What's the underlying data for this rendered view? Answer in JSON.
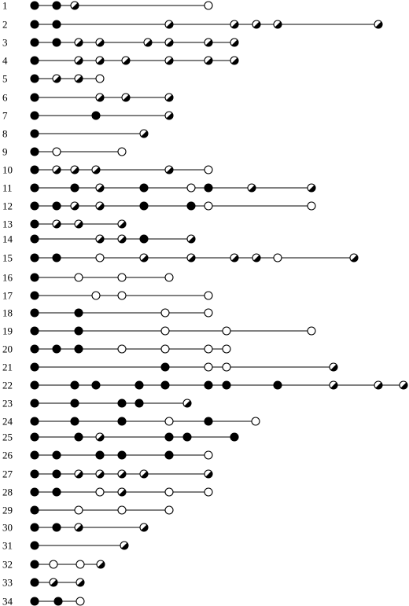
{
  "legend_note": "",
  "rows": [
    {
      "label": "1",
      "events": [
        [
          "f",
          44
        ],
        [
          "f",
          72
        ],
        [
          "h",
          95
        ],
        [
          "o",
          265
        ]
      ]
    },
    {
      "label": "2",
      "events": [
        [
          "f",
          44
        ],
        [
          "f",
          72
        ],
        [
          "h",
          215
        ],
        [
          "h",
          298
        ],
        [
          "h",
          326
        ],
        [
          "h",
          353
        ],
        [
          "h",
          481
        ]
      ]
    },
    {
      "label": "3",
      "events": [
        [
          "f",
          44
        ],
        [
          "f",
          72
        ],
        [
          "h",
          100
        ],
        [
          "h",
          127
        ],
        [
          "h",
          188
        ],
        [
          "h",
          215
        ],
        [
          "h",
          265
        ],
        [
          "h",
          298
        ]
      ]
    },
    {
      "label": "4",
      "events": [
        [
          "f",
          44
        ],
        [
          "h",
          100
        ],
        [
          "h",
          127
        ],
        [
          "h",
          160
        ],
        [
          "h",
          215
        ],
        [
          "h",
          265
        ],
        [
          "h",
          298
        ]
      ]
    },
    {
      "label": "5",
      "events": [
        [
          "f",
          44
        ],
        [
          "h",
          72
        ],
        [
          "h",
          100
        ],
        [
          "o",
          127
        ]
      ]
    },
    {
      "label": "6",
      "events": [
        [
          "f",
          44
        ],
        [
          "h",
          127
        ],
        [
          "h",
          160
        ],
        [
          "h",
          215
        ]
      ]
    },
    {
      "label": "7",
      "events": [
        [
          "f",
          44
        ],
        [
          "f",
          122
        ],
        [
          "h",
          215
        ]
      ]
    },
    {
      "label": "8",
      "events": [
        [
          "f",
          44
        ],
        [
          "h",
          183
        ]
      ]
    },
    {
      "label": "9",
      "events": [
        [
          "f",
          44
        ],
        [
          "o",
          72
        ],
        [
          "o",
          155
        ]
      ]
    },
    {
      "label": "10",
      "events": [
        [
          "f",
          44
        ],
        [
          "h",
          72
        ],
        [
          "h",
          95
        ],
        [
          "h",
          122
        ],
        [
          "h",
          215
        ],
        [
          "o",
          265
        ]
      ]
    },
    {
      "label": "11",
      "events": [
        [
          "f",
          44
        ],
        [
          "f",
          95
        ],
        [
          "h",
          127
        ],
        [
          "f",
          183
        ],
        [
          "o",
          243
        ],
        [
          "f",
          265
        ],
        [
          "h",
          320
        ],
        [
          "h",
          396
        ]
      ]
    },
    {
      "label": "12",
      "events": [
        [
          "f",
          44
        ],
        [
          "f",
          72
        ],
        [
          "h",
          95
        ],
        [
          "h",
          127
        ],
        [
          "f",
          183
        ],
        [
          "f",
          243
        ],
        [
          "o",
          265
        ],
        [
          "o",
          396
        ]
      ]
    },
    {
      "label": "13",
      "events": [
        [
          "f",
          44
        ],
        [
          "h",
          72
        ],
        [
          "h",
          100
        ],
        [
          "h",
          155
        ]
      ]
    },
    {
      "label": "14",
      "events": [
        [
          "f",
          44
        ],
        [
          "h",
          127
        ],
        [
          "h",
          155
        ],
        [
          "f",
          183
        ],
        [
          "h",
          243
        ]
      ]
    },
    {
      "label": "15",
      "events": [
        [
          "f",
          44
        ],
        [
          "f",
          72
        ],
        [
          "o",
          127
        ],
        [
          "h",
          183
        ],
        [
          "h",
          243
        ],
        [
          "h",
          298
        ],
        [
          "h",
          326
        ],
        [
          "o",
          353
        ],
        [
          "h",
          450
        ]
      ]
    },
    {
      "label": "16",
      "events": [
        [
          "f",
          44
        ],
        [
          "o",
          100
        ],
        [
          "o",
          155
        ],
        [
          "o",
          215
        ]
      ]
    },
    {
      "label": "17",
      "events": [
        [
          "f",
          44
        ],
        [
          "o",
          122
        ],
        [
          "o",
          155
        ],
        [
          "o",
          265
        ]
      ]
    },
    {
      "label": "18",
      "events": [
        [
          "f",
          44
        ],
        [
          "f",
          100
        ],
        [
          "o",
          210
        ],
        [
          "o",
          265
        ]
      ]
    },
    {
      "label": "19",
      "events": [
        [
          "f",
          44
        ],
        [
          "f",
          100
        ],
        [
          "o",
          210
        ],
        [
          "o",
          288
        ],
        [
          "o",
          396
        ]
      ]
    },
    {
      "label": "20",
      "events": [
        [
          "f",
          44
        ],
        [
          "f",
          72
        ],
        [
          "f",
          100
        ],
        [
          "o",
          155
        ],
        [
          "o",
          210
        ],
        [
          "o",
          265
        ],
        [
          "o",
          288
        ]
      ]
    },
    {
      "label": "21",
      "events": [
        [
          "f",
          44
        ],
        [
          "f",
          210
        ],
        [
          "o",
          265
        ],
        [
          "o",
          288
        ],
        [
          "h",
          424
        ]
      ]
    },
    {
      "label": "22",
      "events": [
        [
          "f",
          44
        ],
        [
          "f",
          95
        ],
        [
          "f",
          122
        ],
        [
          "f",
          177
        ],
        [
          "f",
          210
        ],
        [
          "f",
          265
        ],
        [
          "f",
          288
        ],
        [
          "f",
          353
        ],
        [
          "h",
          424
        ],
        [
          "h",
          481
        ],
        [
          "h",
          513
        ]
      ]
    },
    {
      "label": "23",
      "events": [
        [
          "f",
          44
        ],
        [
          "f",
          95
        ],
        [
          "f",
          155
        ],
        [
          "f",
          177
        ],
        [
          "h",
          238
        ]
      ]
    },
    {
      "label": "24",
      "events": [
        [
          "f",
          44
        ],
        [
          "f",
          95
        ],
        [
          "f",
          155
        ],
        [
          "o",
          215
        ],
        [
          "f",
          265
        ],
        [
          "o",
          325
        ]
      ]
    },
    {
      "label": "25",
      "events": [
        [
          "f",
          44
        ],
        [
          "f",
          100
        ],
        [
          "h",
          127
        ],
        [
          "f",
          215
        ],
        [
          "f",
          238
        ],
        [
          "f",
          298
        ]
      ]
    },
    {
      "label": "26",
      "events": [
        [
          "f",
          44
        ],
        [
          "f",
          72
        ],
        [
          "f",
          127
        ],
        [
          "f",
          155
        ],
        [
          "f",
          215
        ],
        [
          "o",
          265
        ]
      ]
    },
    {
      "label": "27",
      "events": [
        [
          "f",
          44
        ],
        [
          "f",
          72
        ],
        [
          "h",
          100
        ],
        [
          "h",
          127
        ],
        [
          "h",
          155
        ],
        [
          "h",
          183
        ],
        [
          "h",
          265
        ]
      ]
    },
    {
      "label": "28",
      "events": [
        [
          "f",
          44
        ],
        [
          "f",
          72
        ],
        [
          "o",
          127
        ],
        [
          "h",
          155
        ],
        [
          "o",
          215
        ],
        [
          "o",
          265
        ]
      ]
    },
    {
      "label": "29",
      "events": [
        [
          "f",
          44
        ],
        [
          "o",
          100
        ],
        [
          "o",
          155
        ],
        [
          "o",
          215
        ]
      ]
    },
    {
      "label": "30",
      "events": [
        [
          "f",
          44
        ],
        [
          "f",
          72
        ],
        [
          "h",
          100
        ],
        [
          "h",
          183
        ]
      ]
    },
    {
      "label": "31",
      "events": [
        [
          "f",
          44
        ],
        [
          "h",
          158
        ]
      ]
    },
    {
      "label": "32",
      "events": [
        [
          "f",
          44
        ],
        [
          "o",
          68
        ],
        [
          "o",
          102
        ],
        [
          "h",
          128
        ]
      ]
    },
    {
      "label": "33",
      "events": [
        [
          "f",
          44
        ],
        [
          "h",
          68
        ],
        [
          "h",
          102
        ]
      ]
    },
    {
      "label": "34",
      "events": [
        [
          "f",
          44
        ],
        [
          "f",
          74
        ],
        [
          "o",
          102
        ]
      ]
    }
  ]
}
